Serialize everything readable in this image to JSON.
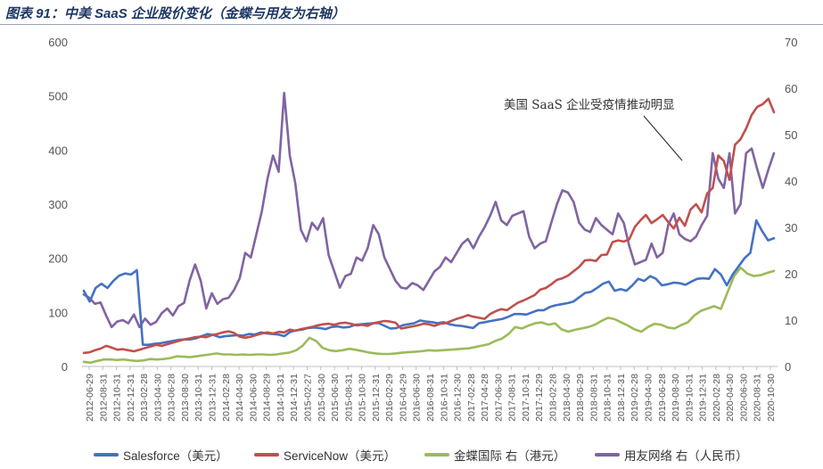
{
  "title": "图表 91：中美 SaaS 企业股价变化（金蝶与用友为右轴）",
  "chart_data": {
    "type": "line",
    "annotation": "美国 SaaS 企业受疫情推动明显",
    "y_left": {
      "ylim": [
        0,
        600
      ],
      "ticks": [
        "0",
        "100",
        "200",
        "300",
        "400",
        "500",
        "600"
      ]
    },
    "y_right": {
      "ylim": [
        0,
        70
      ],
      "ticks": [
        "0",
        "10",
        "20",
        "30",
        "40",
        "50",
        "60",
        "70"
      ]
    },
    "x_tick_labels": [
      "2012-06-29",
      "2012-08-31",
      "2012-10-31",
      "2012-12-31",
      "2013-02-28",
      "2013-04-30",
      "2013-06-28",
      "2013-08-30",
      "2013-10-31",
      "2013-12-31",
      "2014-02-28",
      "2014-04-30",
      "2014-06-30",
      "2014-08-29",
      "2014-10-31",
      "2014-12-31",
      "2015-02-27",
      "2015-04-30",
      "2015-06-30",
      "2015-08-31",
      "2015-10-30",
      "2015-12-31",
      "2016-02-29",
      "2016-04-29",
      "2016-06-30",
      "2016-08-31",
      "2016-10-31",
      "2016-12-30",
      "2017-02-28",
      "2017-04-28",
      "2017-06-30",
      "2017-08-31",
      "2017-10-31",
      "2017-12-29",
      "2018-02-28",
      "2018-04-30",
      "2018-06-29",
      "2018-08-31",
      "2018-10-31",
      "2018-12-31",
      "2019-02-28",
      "2019-04-30",
      "2019-06-28",
      "2019-08-30",
      "2019-10-31",
      "2019-12-31",
      "2020-02-28",
      "2020-04-30",
      "2020-06-30",
      "2020-08-31",
      "2020-10-30"
    ],
    "series": [
      {
        "name": "Salesforce（美元）",
        "axis": "left",
        "color": "#4472c4",
        "values": [
          140,
          120,
          145,
          153,
          145,
          158,
          168,
          172,
          170,
          178,
          40,
          40,
          42,
          43,
          45,
          47,
          49,
          50,
          50,
          52,
          56,
          60,
          58,
          54,
          56,
          57,
          58,
          57,
          60,
          59,
          63,
          61,
          60,
          59,
          56,
          64,
          67,
          68,
          71,
          72,
          71,
          69,
          73,
          74,
          72,
          73,
          77,
          78,
          79,
          80,
          80,
          75,
          70,
          71,
          76,
          78,
          80,
          85,
          83,
          82,
          80,
          82,
          78,
          76,
          75,
          73,
          71,
          80,
          82,
          84,
          86,
          88,
          92,
          97,
          97,
          96,
          100,
          104,
          104,
          110,
          113,
          115,
          117,
          120,
          128,
          136,
          138,
          145,
          153,
          157,
          140,
          143,
          140,
          150,
          162,
          158,
          167,
          162,
          150,
          152,
          155,
          154,
          151,
          157,
          162,
          163,
          162,
          180,
          170,
          150,
          170,
          185,
          200,
          210,
          270,
          250,
          233,
          237
        ]
      },
      {
        "name": "ServiceNow（美元）",
        "axis": "left",
        "color": "#c0504d",
        "values": [
          25,
          26,
          30,
          33,
          38,
          35,
          31,
          32,
          30,
          28,
          31,
          34,
          37,
          40,
          38,
          41,
          44,
          47,
          50,
          52,
          54,
          55,
          54,
          58,
          60,
          63,
          65,
          62,
          55,
          53,
          55,
          58,
          61,
          63,
          61,
          64,
          63,
          68,
          66,
          69,
          71,
          73,
          76,
          78,
          79,
          77,
          80,
          81,
          79,
          76,
          77,
          75,
          80,
          82,
          84,
          83,
          81,
          70,
          72,
          74,
          76,
          79,
          78,
          75,
          79,
          80,
          84,
          88,
          91,
          95,
          92,
          90,
          88,
          97,
          102,
          106,
          104,
          111,
          118,
          122,
          127,
          132,
          142,
          145,
          152,
          160,
          163,
          168,
          176,
          184,
          196,
          197,
          195,
          206,
          207,
          230,
          233,
          231,
          235,
          258,
          270,
          280,
          265,
          272,
          280,
          267,
          255,
          275,
          260,
          290,
          300,
          285,
          320,
          330,
          390,
          380,
          345,
          410,
          420,
          440,
          465,
          480,
          485,
          495,
          470
        ]
      },
      {
        "name": "金蝶国际 右（港元）",
        "axis": "right",
        "color": "#9bbb59",
        "values": [
          1.0,
          0.8,
          1.2,
          1.5,
          1.5,
          1.4,
          1.5,
          1.3,
          1.2,
          1.3,
          1.6,
          1.5,
          1.6,
          1.8,
          2.2,
          2.1,
          2.0,
          2.2,
          2.4,
          2.6,
          2.8,
          2.6,
          2.6,
          2.5,
          2.6,
          2.5,
          2.6,
          2.6,
          2.5,
          2.6,
          2.8,
          3.0,
          3.5,
          4.5,
          6.2,
          5.5,
          4.0,
          3.5,
          3.3,
          3.5,
          3.8,
          3.6,
          3.3,
          3.0,
          2.8,
          2.7,
          2.7,
          2.8,
          3.0,
          3.1,
          3.2,
          3.3,
          3.5,
          3.4,
          3.5,
          3.6,
          3.7,
          3.8,
          3.9,
          4.2,
          4.5,
          4.8,
          5.5,
          6.0,
          7.0,
          8.5,
          8.2,
          8.8,
          9.3,
          9.5,
          9.0,
          9.3,
          8.0,
          7.5,
          7.9,
          8.2,
          8.5,
          9.0,
          9.8,
          10.5,
          10.2,
          9.5,
          8.8,
          8.0,
          7.5,
          8.5,
          9.2,
          9.0,
          8.4,
          8.2,
          8.9,
          9.5,
          11.0,
          12.0,
          12.5,
          13.0,
          12.4,
          16.0,
          19.5,
          21.3,
          20.0,
          19.5,
          19.7,
          20.2,
          20.6
        ]
      },
      {
        "name": "用友网络 右（人民币）",
        "axis": "right",
        "color": "#8064a2",
        "values": [
          15.5,
          14.8,
          13.5,
          13.8,
          11.0,
          8.5,
          9.7,
          10.0,
          9.3,
          11.2,
          8.5,
          10.3,
          9.0,
          9.6,
          11.5,
          12.5,
          11.0,
          13.0,
          13.7,
          18.5,
          22.0,
          18.5,
          12.5,
          15.8,
          13.5,
          14.5,
          14.8,
          16.5,
          19.0,
          24.5,
          23.5,
          28.5,
          33.5,
          40.5,
          45.5,
          42.0,
          59.0,
          45.5,
          39.5,
          29.5,
          27.0,
          31.0,
          29.5,
          32.0,
          24.0,
          20.5,
          17.0,
          19.5,
          20.0,
          23.5,
          22.8,
          25.5,
          30.5,
          28.5,
          23.5,
          21.0,
          18.5,
          17.0,
          16.8,
          18.0,
          17.5,
          16.5,
          18.5,
          20.5,
          21.5,
          23.5,
          22.5,
          24.5,
          26.5,
          27.5,
          25.5,
          28.0,
          30.0,
          32.5,
          35.5,
          31.5,
          30.5,
          32.5,
          33.0,
          33.5,
          28.0,
          25.5,
          26.5,
          27.0,
          31.0,
          35.0,
          38.0,
          37.5,
          35.5,
          31.0,
          29.5,
          29.0,
          32.0,
          30.5,
          29.5,
          28.5,
          33.0,
          31.0,
          26.0,
          22.0,
          22.5,
          23.0,
          26.5,
          23.5,
          24.5,
          30.5,
          33.0,
          28.5,
          27.5,
          27.0,
          28.0,
          30.5,
          32.5,
          46.0,
          40.5,
          38.5,
          46.0,
          33.0,
          35.0,
          46.0,
          47.0,
          42.5,
          38.5,
          42.5,
          46.0
        ]
      }
    ]
  }
}
